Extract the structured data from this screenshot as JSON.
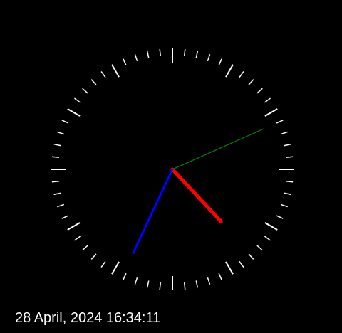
{
  "datetime_text": "28 April, 2024 16:34:11",
  "clock": {
    "hours": 16,
    "minutes": 34,
    "seconds": 11
  },
  "colors": {
    "background": "#000000",
    "ticks": "#ffffff",
    "hour_hand": "#ff0000",
    "minute_hand": "#0000ff",
    "second_hand": "#008000",
    "label": "#ffffff"
  }
}
